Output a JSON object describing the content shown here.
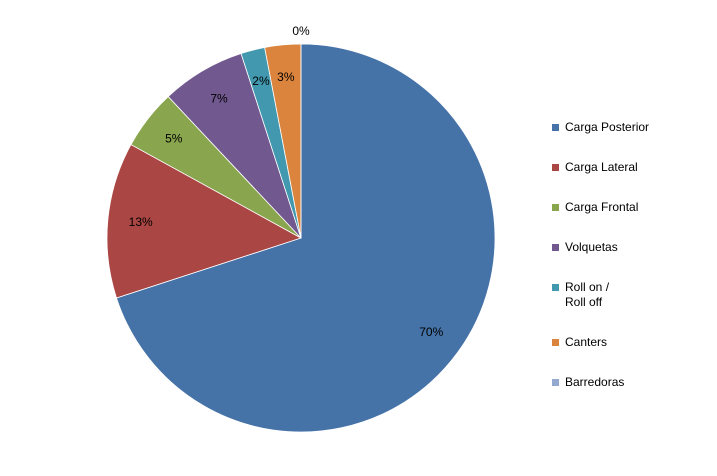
{
  "chart_data": {
    "type": "pie",
    "categories": [
      "Carga Posterior",
      "Carga Lateral",
      "Carga Frontal",
      "Volquetas",
      "Roll on /\nRoll off",
      "Canters",
      "Barredoras"
    ],
    "values": [
      70,
      13,
      5,
      7,
      2,
      3,
      0
    ],
    "value_labels": [
      "70%",
      "13%",
      "5%",
      "7%",
      "2%",
      "3%",
      "0%"
    ],
    "colors": [
      "#4572a7",
      "#aa4643",
      "#89a54e",
      "#71588f",
      "#4198af",
      "#db843d",
      "#93a9cf"
    ],
    "legend": "right"
  }
}
